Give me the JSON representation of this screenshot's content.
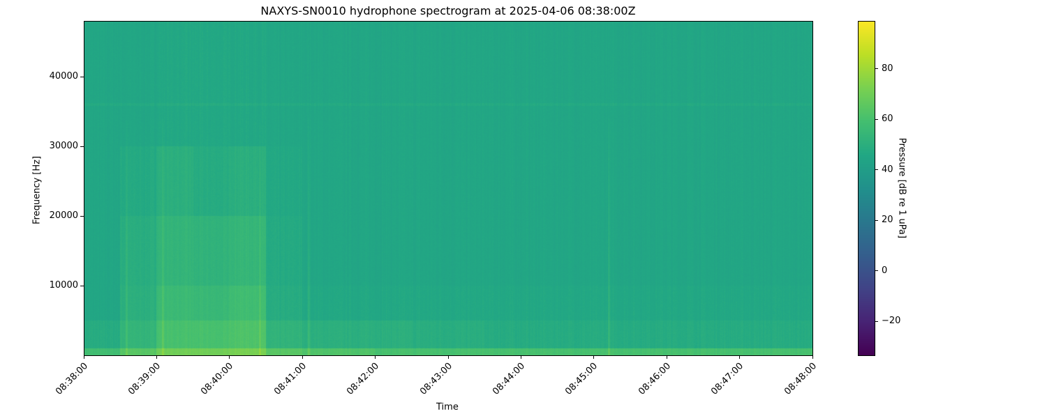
{
  "chart_data": {
    "type": "heatmap",
    "title": "NAXYS-SN0010 hydrophone spectrogram at 2025-04-06 08:38:00Z",
    "xlabel": "Time",
    "ylabel": "Frequency [Hz]",
    "colorbar_label": "Pressure [dB re 1 uPa]",
    "colormap": "viridis",
    "xlim": [
      "08:38:00",
      "08:48:00"
    ],
    "x_ticks": [
      "08:38:00",
      "08:39:00",
      "08:40:00",
      "08:41:00",
      "08:42:00",
      "08:43:00",
      "08:44:00",
      "08:45:00",
      "08:46:00",
      "08:47:00",
      "08:48:00"
    ],
    "ylim": [
      0,
      48000
    ],
    "y_ticks": [
      10000,
      20000,
      30000,
      40000
    ],
    "clim": [
      -33.5,
      99
    ],
    "colorbar_ticks": [
      -20,
      0,
      20,
      40,
      60,
      80
    ],
    "time_bins_start": [
      "08:38:00",
      "08:38:30",
      "08:39:00",
      "08:39:30",
      "08:40:00",
      "08:40:30",
      "08:41:00",
      "08:41:30",
      "08:42:00",
      "08:42:30",
      "08:43:00",
      "08:43:30",
      "08:44:00",
      "08:44:30",
      "08:45:00",
      "08:45:30",
      "08:46:00",
      "08:46:30",
      "08:47:00",
      "08:47:30"
    ],
    "freq_bands_hz": [
      [
        0,
        1000
      ],
      [
        1000,
        5000
      ],
      [
        5000,
        10000
      ],
      [
        10000,
        20000
      ],
      [
        20000,
        30000
      ],
      [
        30000,
        48000
      ]
    ],
    "levels_db": [
      [
        58,
        64,
        70,
        70,
        72,
        64,
        62,
        62,
        60,
        60,
        60,
        60,
        60,
        60,
        60,
        60,
        60,
        60,
        60,
        60
      ],
      [
        48,
        53,
        60,
        60,
        62,
        52,
        50,
        50,
        50,
        49,
        49,
        48,
        48,
        48,
        48,
        48,
        48,
        48,
        48,
        48
      ],
      [
        45,
        50,
        56,
        55,
        58,
        48,
        46,
        46,
        46,
        46,
        46,
        46,
        46,
        46,
        46,
        46,
        46,
        46,
        46,
        46
      ],
      [
        45,
        49,
        53,
        52,
        54,
        47,
        45,
        45,
        45,
        45,
        45,
        45,
        45,
        45,
        45,
        45,
        45,
        45,
        45,
        45
      ],
      [
        45,
        47,
        50,
        48,
        50,
        46,
        45,
        45,
        45,
        45,
        45,
        45,
        45,
        45,
        45,
        45,
        45,
        45,
        45,
        45
      ],
      [
        45,
        45,
        46,
        46,
        46,
        45,
        45,
        45,
        45,
        45,
        45,
        45,
        45,
        45,
        45,
        45,
        45,
        45,
        45,
        45
      ]
    ],
    "transients": [
      "08:38:35",
      "08:39:05",
      "08:40:25",
      "08:41:05",
      "08:45:12"
    ],
    "grid": false
  }
}
